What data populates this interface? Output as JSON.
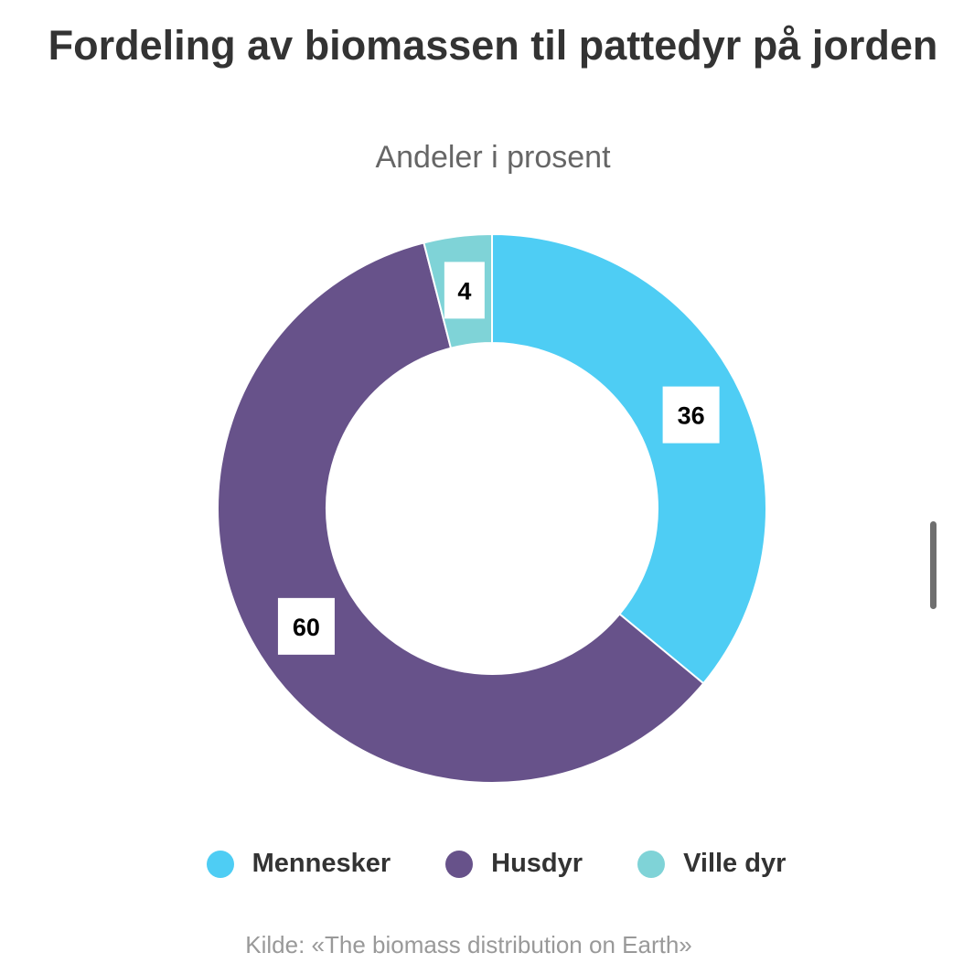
{
  "chart_data": {
    "type": "pie",
    "title": "Fordeling av biomassen til pattedyr på jorden",
    "subtitle": "Andeler i prosent",
    "categories": [
      "Mennesker",
      "Husdyr",
      "Ville dyr"
    ],
    "values": [
      36,
      60,
      4
    ],
    "colors": [
      "#4ecdf4",
      "#67528a",
      "#7fd3d7"
    ],
    "data_labels": [
      "36",
      "60",
      "4"
    ],
    "legend_position": "bottom-center",
    "source": "Kilde: «The biomass distribution on Earth»"
  }
}
